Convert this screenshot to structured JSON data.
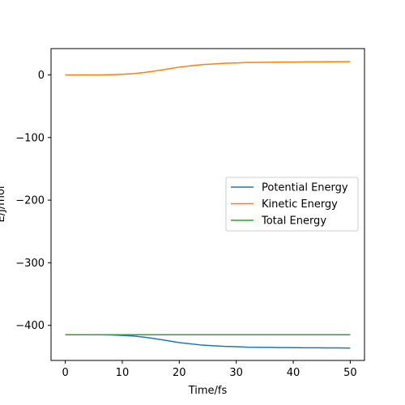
{
  "chart_data": {
    "type": "line",
    "title": "",
    "xlabel": "Time/fs",
    "ylabel": "E/J/mol",
    "xlim": [
      -2.5,
      52.5
    ],
    "ylim": [
      -456,
      42
    ],
    "xticks": [
      0,
      10,
      20,
      30,
      40,
      50
    ],
    "yticks": [
      0,
      -100,
      -200,
      -300,
      -400
    ],
    "xtick_labels": [
      "0",
      "10",
      "20",
      "30",
      "40",
      "50"
    ],
    "ytick_labels": [
      "0",
      "−100",
      "−200",
      "−300",
      "−400"
    ],
    "grid": false,
    "legend_position": "center-right",
    "x": [
      0,
      2,
      4,
      6,
      8,
      10,
      12,
      14,
      16,
      18,
      20,
      22,
      24,
      26,
      28,
      30,
      32,
      34,
      36,
      38,
      40,
      42,
      44,
      46,
      48,
      50
    ],
    "series": [
      {
        "name": "Potential Energy",
        "color": "#1f77b4",
        "values": [
          -415,
          -415,
          -415,
          -415,
          -415.3,
          -416,
          -417,
          -419,
          -421.5,
          -424.5,
          -427.5,
          -429.5,
          -431.5,
          -432.5,
          -433.5,
          -434,
          -434.8,
          -435,
          -435.2,
          -435.5,
          -435.5,
          -435.8,
          -435.8,
          -436,
          -436,
          -436.3
        ]
      },
      {
        "name": "Kinetic Energy",
        "color": "#ff7f0e",
        "values": [
          0,
          0,
          0,
          0,
          0.3,
          1,
          2,
          4,
          6.5,
          9.5,
          12.5,
          14.5,
          16.5,
          17.5,
          18.5,
          19,
          19.8,
          20,
          20.2,
          20.5,
          20.5,
          20.8,
          20.8,
          21,
          21,
          21.3
        ]
      },
      {
        "name": "Total Energy",
        "color": "#2ca02c",
        "values": [
          -415,
          -415,
          -415,
          -415,
          -415,
          -415,
          -415,
          -415,
          -415,
          -415,
          -415,
          -415,
          -415,
          -415,
          -415,
          -415,
          -415,
          -415,
          -415,
          -415,
          -415,
          -415,
          -415,
          -415,
          -415,
          -415
        ]
      }
    ]
  }
}
